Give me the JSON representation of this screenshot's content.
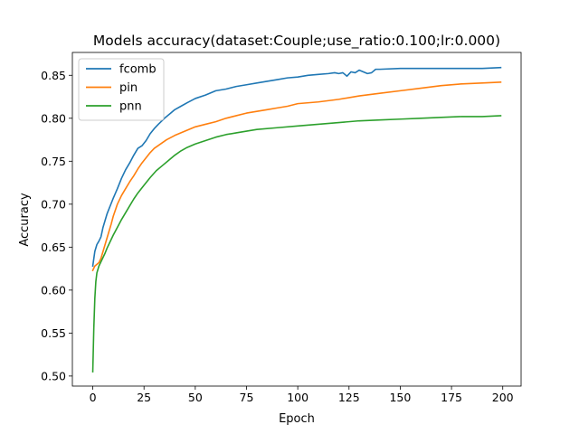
{
  "chart_data": {
    "type": "line",
    "title": "Models accuracy(dataset:Couple;use_ratio:0.100;lr:0.000)",
    "xlabel": "Epoch",
    "ylabel": "Accuracy",
    "xlim": [
      -9.95,
      208.95
    ],
    "ylim": [
      0.4883,
      0.8766
    ],
    "xticks": [
      0,
      25,
      50,
      75,
      100,
      125,
      150,
      175,
      200
    ],
    "xtick_labels": [
      "0",
      "25",
      "50",
      "75",
      "100",
      "125",
      "150",
      "175",
      "200"
    ],
    "yticks": [
      0.5,
      0.55,
      0.6,
      0.65,
      0.7,
      0.75,
      0.8,
      0.85
    ],
    "ytick_labels": [
      "0.50",
      "0.55",
      "0.60",
      "0.65",
      "0.70",
      "0.75",
      "0.80",
      "0.85"
    ],
    "grid": false,
    "legend_position": "upper-left",
    "series": [
      {
        "name": "fcomb",
        "color": "#1f77b4",
        "points": [
          [
            0,
            0.628
          ],
          [
            1,
            0.645
          ],
          [
            2,
            0.653
          ],
          [
            3,
            0.657
          ],
          [
            4,
            0.662
          ],
          [
            5,
            0.673
          ],
          [
            6,
            0.681
          ],
          [
            7,
            0.689
          ],
          [
            8,
            0.695
          ],
          [
            9,
            0.701
          ],
          [
            10,
            0.707
          ],
          [
            12,
            0.718
          ],
          [
            14,
            0.73
          ],
          [
            16,
            0.74
          ],
          [
            18,
            0.748
          ],
          [
            20,
            0.757
          ],
          [
            22,
            0.765
          ],
          [
            24,
            0.768
          ],
          [
            26,
            0.774
          ],
          [
            28,
            0.782
          ],
          [
            30,
            0.788
          ],
          [
            32,
            0.793
          ],
          [
            35,
            0.8
          ],
          [
            38,
            0.806
          ],
          [
            40,
            0.81
          ],
          [
            43,
            0.814
          ],
          [
            46,
            0.818
          ],
          [
            50,
            0.823
          ],
          [
            55,
            0.827
          ],
          [
            60,
            0.832
          ],
          [
            65,
            0.834
          ],
          [
            70,
            0.837
          ],
          [
            75,
            0.839
          ],
          [
            80,
            0.841
          ],
          [
            85,
            0.843
          ],
          [
            90,
            0.845
          ],
          [
            95,
            0.847
          ],
          [
            100,
            0.848
          ],
          [
            105,
            0.85
          ],
          [
            110,
            0.851
          ],
          [
            115,
            0.852
          ],
          [
            118,
            0.853
          ],
          [
            120,
            0.852
          ],
          [
            122,
            0.853
          ],
          [
            124,
            0.849
          ],
          [
            126,
            0.854
          ],
          [
            128,
            0.853
          ],
          [
            130,
            0.856
          ],
          [
            132,
            0.854
          ],
          [
            134,
            0.852
          ],
          [
            136,
            0.853
          ],
          [
            138,
            0.857
          ],
          [
            140,
            0.857
          ],
          [
            150,
            0.858
          ],
          [
            160,
            0.858
          ],
          [
            170,
            0.858
          ],
          [
            180,
            0.858
          ],
          [
            190,
            0.858
          ],
          [
            199,
            0.859
          ]
        ]
      },
      {
        "name": "pin",
        "color": "#ff7f0e",
        "points": [
          [
            0,
            0.623
          ],
          [
            1,
            0.628
          ],
          [
            2,
            0.63
          ],
          [
            3,
            0.632
          ],
          [
            4,
            0.637
          ],
          [
            5,
            0.645
          ],
          [
            6,
            0.653
          ],
          [
            7,
            0.661
          ],
          [
            8,
            0.669
          ],
          [
            9,
            0.677
          ],
          [
            10,
            0.686
          ],
          [
            12,
            0.7
          ],
          [
            14,
            0.71
          ],
          [
            16,
            0.718
          ],
          [
            18,
            0.726
          ],
          [
            20,
            0.733
          ],
          [
            22,
            0.741
          ],
          [
            24,
            0.748
          ],
          [
            26,
            0.754
          ],
          [
            28,
            0.76
          ],
          [
            30,
            0.765
          ],
          [
            33,
            0.77
          ],
          [
            36,
            0.775
          ],
          [
            40,
            0.78
          ],
          [
            45,
            0.785
          ],
          [
            50,
            0.79
          ],
          [
            55,
            0.793
          ],
          [
            60,
            0.796
          ],
          [
            65,
            0.8
          ],
          [
            70,
            0.803
          ],
          [
            75,
            0.806
          ],
          [
            80,
            0.808
          ],
          [
            85,
            0.81
          ],
          [
            90,
            0.812
          ],
          [
            95,
            0.814
          ],
          [
            100,
            0.817
          ],
          [
            110,
            0.819
          ],
          [
            120,
            0.822
          ],
          [
            130,
            0.826
          ],
          [
            140,
            0.829
          ],
          [
            150,
            0.832
          ],
          [
            160,
            0.835
          ],
          [
            170,
            0.838
          ],
          [
            180,
            0.84
          ],
          [
            190,
            0.841
          ],
          [
            199,
            0.842
          ]
        ]
      },
      {
        "name": "pnn",
        "color": "#2ca02c",
        "points": [
          [
            0,
            0.505
          ],
          [
            0.5,
            0.555
          ],
          [
            1,
            0.59
          ],
          [
            1.5,
            0.61
          ],
          [
            2,
            0.62
          ],
          [
            3,
            0.628
          ],
          [
            4,
            0.633
          ],
          [
            5,
            0.638
          ],
          [
            6,
            0.643
          ],
          [
            7,
            0.649
          ],
          [
            8,
            0.654
          ],
          [
            9,
            0.659
          ],
          [
            10,
            0.664
          ],
          [
            12,
            0.673
          ],
          [
            14,
            0.682
          ],
          [
            16,
            0.69
          ],
          [
            18,
            0.698
          ],
          [
            20,
            0.706
          ],
          [
            22,
            0.713
          ],
          [
            25,
            0.722
          ],
          [
            28,
            0.731
          ],
          [
            31,
            0.739
          ],
          [
            34,
            0.745
          ],
          [
            37,
            0.751
          ],
          [
            40,
            0.757
          ],
          [
            43,
            0.762
          ],
          [
            46,
            0.766
          ],
          [
            50,
            0.77
          ],
          [
            55,
            0.774
          ],
          [
            60,
            0.778
          ],
          [
            65,
            0.781
          ],
          [
            70,
            0.783
          ],
          [
            75,
            0.785
          ],
          [
            80,
            0.787
          ],
          [
            90,
            0.789
          ],
          [
            100,
            0.791
          ],
          [
            110,
            0.793
          ],
          [
            120,
            0.795
          ],
          [
            130,
            0.797
          ],
          [
            140,
            0.798
          ],
          [
            150,
            0.799
          ],
          [
            160,
            0.8
          ],
          [
            170,
            0.801
          ],
          [
            180,
            0.802
          ],
          [
            190,
            0.802
          ],
          [
            199,
            0.803
          ]
        ]
      }
    ]
  }
}
